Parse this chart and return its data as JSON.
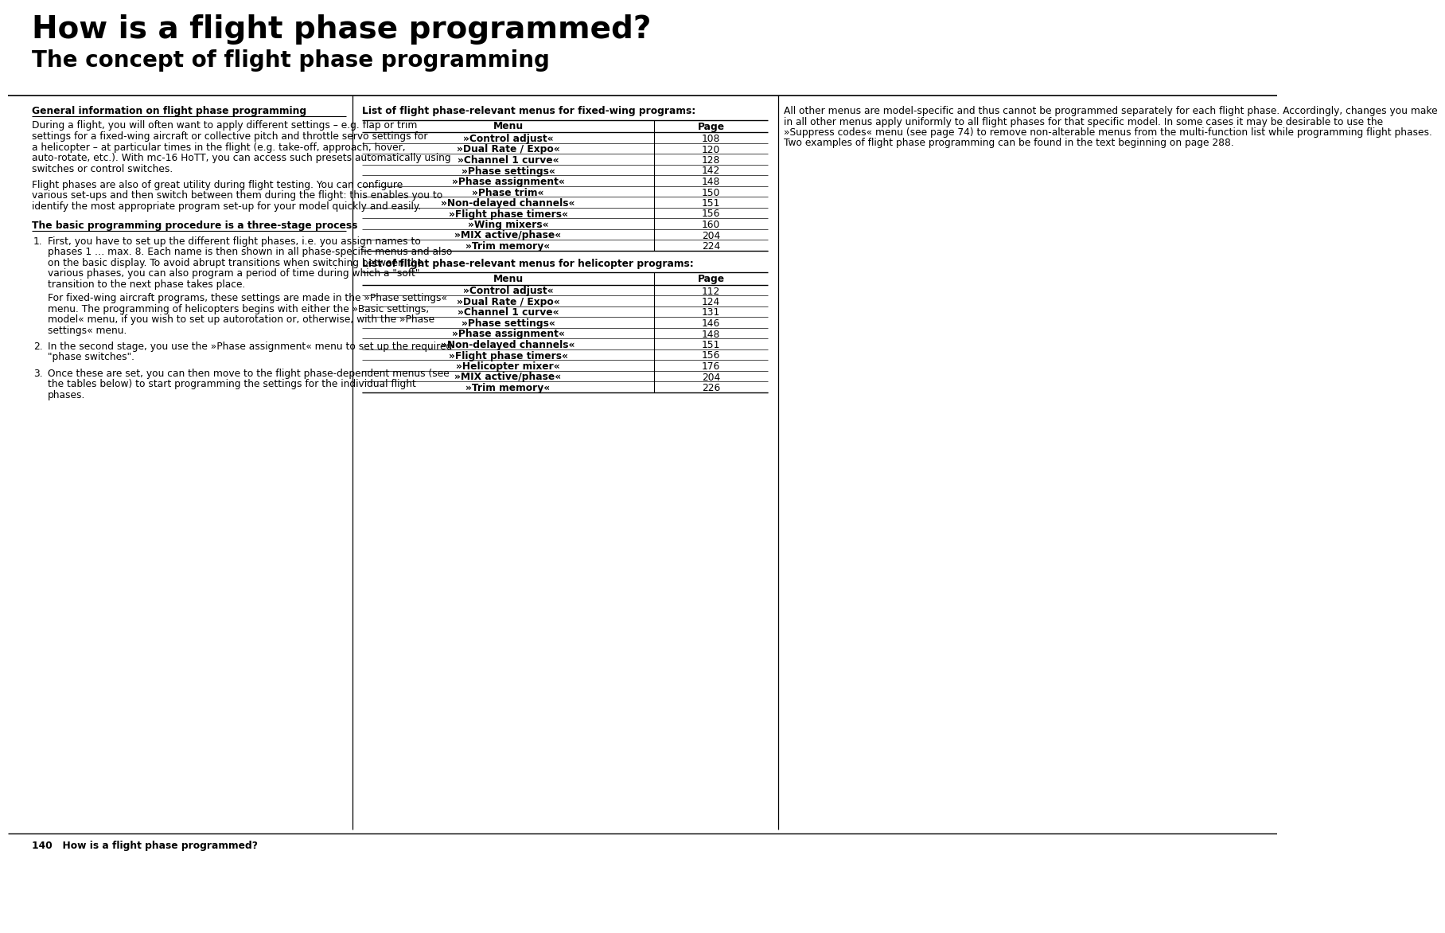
{
  "title": "How is a flight phase programmed?",
  "subtitle": "The concept of flight phase programming",
  "bg_color": "#ffffff",
  "text_color": "#000000",
  "footer_text": "140   How is a flight phase programmed?",
  "col1_heading": "General information on flight phase programming",
  "col1_para1": "During a flight, you will often want to apply different settings – e.g. flap or trim settings for a fixed-wing aircraft or collective pitch and throttle servo settings for a helicopter – at particular times in the flight (e.g. take-off, approach, hover, auto-rotate, etc.). With mc-16 HoTT, you can access such presets automatically using switches or control switches.",
  "col1_para2": "Flight phases are also of great utility during flight testing. You can configure various set-ups and then switch between them during the flight: this enables you to identify the most appropriate program set-up for your model quickly and easily.",
  "col1_heading2": "The basic programming procedure is a three-stage process",
  "col1_item1a": "First, you have to set up the different flight phases, i.e. you assign names to phases 1 … max. 8. Each name is then shown in all phase-specific menus and also on the basic display. To avoid abrupt transitions when switching between the various phases, you can also program a period of time during which a \"soft\" transition to the next phase takes place.",
  "col1_item1b": "For fixed-wing aircraft programs, these settings are made in the »Phase settings« menu. The programming of helicopters begins with either the »Basic settings, model« menu, if you wish to set up autorotation or, otherwise, with the »Phase settings« menu.",
  "col1_item2": "In the second stage, you use the »Phase assignment« menu to set up the required \"phase switches\".",
  "col1_item3": "Once these are set, you can then move to the flight phase-dependent menus (see the tables below) to start programming the settings for the individual flight phases.",
  "col2_heading1": "List of flight phase-relevant menus for fixed-wing programs:",
  "col2_table1_rows": [
    [
      "»Control adjust«",
      "108"
    ],
    [
      "»Dual Rate / Expo«",
      "120"
    ],
    [
      "»Channel 1 curve«",
      "128"
    ],
    [
      "»Phase settings«",
      "142"
    ],
    [
      "»Phase assignment«",
      "148"
    ],
    [
      "»Phase trim«",
      "150"
    ],
    [
      "»Non-delayed channels«",
      "151"
    ],
    [
      "»Flight phase timers«",
      "156"
    ],
    [
      "»Wing mixers«",
      "160"
    ],
    [
      "»MIX active/phase«",
      "204"
    ],
    [
      "»Trim memory«",
      "224"
    ]
  ],
  "col2_heading2": "List of flight phase-relevant menus for helicopter programs:",
  "col2_table2_rows": [
    [
      "»Control adjust«",
      "112"
    ],
    [
      "»Dual Rate / Expo«",
      "124"
    ],
    [
      "»Channel 1 curve«",
      "131"
    ],
    [
      "»Phase settings«",
      "146"
    ],
    [
      "»Phase assignment«",
      "148"
    ],
    [
      "»Non-delayed channels«",
      "151"
    ],
    [
      "»Flight phase timers«",
      "156"
    ],
    [
      "»Helicopter mixer«",
      "176"
    ],
    [
      "»MIX active/phase«",
      "204"
    ],
    [
      "»Trim memory«",
      "226"
    ]
  ],
  "col3_text": "All other menus are model-specific and thus cannot be programmed separately for each flight phase. Accordingly, changes you make in all other menus apply uniformly to all flight phases for that specific model. In some cases it may be desirable to use the »Suppress codes« menu (see page 74) to remove non-alterable menus from the multi-function list while programming flight phases. Two examples of flight phase programming can be found in the text beginning on page 288."
}
